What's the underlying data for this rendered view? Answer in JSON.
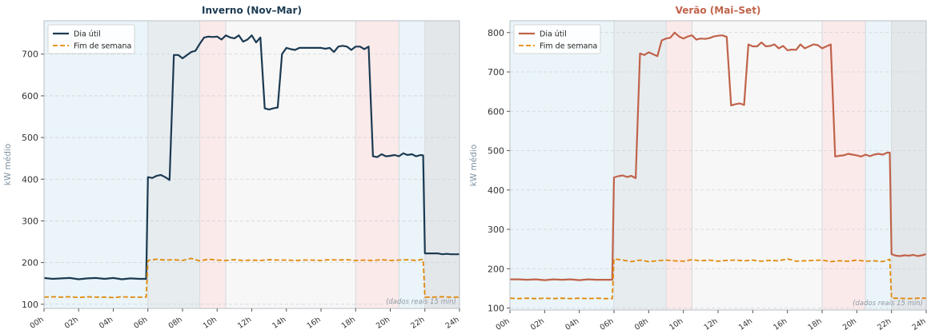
{
  "chart_data": [
    {
      "type": "line",
      "title": "Inverno (Nov–Mar)",
      "title_color": "#1b3a52",
      "ylabel": "kW médio",
      "xlabel": "",
      "xlim": [
        0,
        24
      ],
      "ylim": [
        90,
        780
      ],
      "yticks": [
        100,
        200,
        300,
        400,
        500,
        600,
        700
      ],
      "xticks": [
        0,
        2,
        4,
        6,
        8,
        10,
        12,
        14,
        16,
        18,
        20,
        22,
        24
      ],
      "xtick_labels": [
        "00h",
        "02h",
        "04h",
        "06h",
        "08h",
        "10h",
        "12h",
        "14h",
        "16h",
        "18h",
        "20h",
        "22h",
        "24h"
      ],
      "grid": "horizontal dashed",
      "legend": "top-left",
      "annotation": "(dados reais 15 min)",
      "bands": [
        {
          "from": 0,
          "to": 6,
          "color": "#eaf4f9"
        },
        {
          "from": 6,
          "to": 9,
          "color": "#e7ecef"
        },
        {
          "from": 9,
          "to": 10.5,
          "color": "#fbeaea"
        },
        {
          "from": 10.5,
          "to": 18,
          "color": "#f7f7f7"
        },
        {
          "from": 18,
          "to": 20.5,
          "color": "#fbeaea"
        },
        {
          "from": 20.5,
          "to": 22,
          "color": "#eaf4f9"
        },
        {
          "from": 22,
          "to": 24,
          "color": "#e4e7ea"
        }
      ],
      "band_edges": [
        6,
        9,
        10.5,
        18,
        20.5,
        22
      ],
      "series": [
        {
          "name": "Dia útil",
          "color": "#1b3a52",
          "style": "solid",
          "x": [
            0,
            0.5,
            1,
            1.5,
            2,
            2.5,
            3,
            3.5,
            4,
            4.5,
            5,
            5.5,
            5.9,
            6.0,
            6.25,
            6.5,
            6.75,
            7.0,
            7.25,
            7.5,
            7.75,
            8.0,
            8.5,
            8.75,
            9.0,
            9.25,
            9.5,
            9.75,
            10.0,
            10.25,
            10.5,
            10.75,
            11.0,
            11.25,
            11.5,
            11.75,
            12.0,
            12.25,
            12.5,
            12.75,
            13.0,
            13.25,
            13.5,
            13.75,
            14.0,
            14.25,
            14.5,
            14.75,
            15.0,
            15.5,
            16.0,
            16.25,
            16.5,
            16.75,
            17.0,
            17.25,
            17.5,
            17.75,
            18.0,
            18.25,
            18.5,
            18.75,
            19.0,
            19.25,
            19.5,
            19.75,
            20.0,
            20.25,
            20.5,
            20.75,
            21.0,
            21.25,
            21.5,
            21.75,
            21.9,
            22.0,
            22.25,
            22.5,
            22.75,
            23.0,
            23.25,
            23.5,
            23.75,
            24.0
          ],
          "values": [
            163,
            161,
            162,
            163,
            160,
            162,
            163,
            161,
            163,
            160,
            162,
            161,
            161,
            405,
            403,
            408,
            410,
            405,
            398,
            698,
            698,
            690,
            705,
            708,
            725,
            740,
            742,
            741,
            742,
            735,
            745,
            740,
            738,
            745,
            730,
            735,
            745,
            728,
            740,
            570,
            567,
            570,
            572,
            700,
            715,
            712,
            710,
            715,
            715,
            715,
            715,
            713,
            715,
            705,
            718,
            720,
            718,
            710,
            718,
            718,
            712,
            718,
            455,
            453,
            460,
            455,
            456,
            458,
            455,
            462,
            458,
            460,
            455,
            458,
            457,
            222,
            222,
            222,
            222,
            220,
            221,
            220,
            220,
            220
          ]
        },
        {
          "name": "Fim de semana",
          "color": "#e08a0b",
          "style": "dashed",
          "x": [
            0,
            0.5,
            1,
            1.5,
            2,
            2.5,
            3,
            3.5,
            4,
            4.5,
            5,
            5.5,
            5.9,
            6.0,
            6.5,
            7.0,
            7.5,
            8.0,
            8.5,
            9.0,
            9.5,
            10.0,
            10.5,
            11.0,
            11.5,
            12.0,
            12.5,
            13.0,
            13.5,
            14.0,
            14.5,
            15.0,
            15.5,
            16.0,
            16.5,
            17.0,
            17.5,
            18.0,
            18.5,
            19.0,
            19.5,
            20.0,
            20.5,
            21.0,
            21.5,
            21.9,
            22.0,
            22.5,
            23.0,
            23.5,
            24.0
          ],
          "values": [
            117,
            118,
            117,
            118,
            116,
            118,
            117,
            117,
            116,
            118,
            117,
            117,
            117,
            205,
            208,
            206,
            207,
            205,
            210,
            204,
            208,
            206,
            205,
            207,
            205,
            206,
            205,
            207,
            206,
            206,
            205,
            206,
            206,
            205,
            207,
            206,
            207,
            205,
            206,
            205,
            207,
            205,
            206,
            207,
            205,
            208,
            117,
            117,
            118,
            117,
            117
          ]
        }
      ]
    },
    {
      "type": "line",
      "title": "Verão (Mai–Set)",
      "title_color": "#c0634a",
      "ylabel": "kW médio",
      "xlabel": "",
      "xlim": [
        0,
        24
      ],
      "ylim": [
        95,
        830
      ],
      "yticks": [
        100,
        200,
        300,
        400,
        500,
        600,
        700,
        800
      ],
      "xticks": [
        0,
        2,
        4,
        6,
        8,
        10,
        12,
        14,
        16,
        18,
        20,
        22,
        24
      ],
      "xtick_labels": [
        "00h",
        "02h",
        "04h",
        "06h",
        "08h",
        "10h",
        "12h",
        "14h",
        "16h",
        "18h",
        "20h",
        "22h",
        "24h"
      ],
      "grid": "horizontal dashed",
      "legend": "top-left",
      "annotation": "(dados reais 15 min)",
      "bands": [
        {
          "from": 0,
          "to": 6,
          "color": "#eaf4f9"
        },
        {
          "from": 6,
          "to": 9,
          "color": "#e7ecef"
        },
        {
          "from": 9,
          "to": 10.5,
          "color": "#fbeaea"
        },
        {
          "from": 10.5,
          "to": 18,
          "color": "#f7f7f7"
        },
        {
          "from": 18,
          "to": 20.5,
          "color": "#fbeaea"
        },
        {
          "from": 20.5,
          "to": 22,
          "color": "#eaf4f9"
        },
        {
          "from": 22,
          "to": 24,
          "color": "#e4e7ea"
        }
      ],
      "band_edges": [
        6,
        9,
        10.5,
        18,
        20.5,
        22
      ],
      "series": [
        {
          "name": "Dia útil",
          "color": "#c0634a",
          "style": "solid",
          "x": [
            0,
            0.5,
            1,
            1.5,
            2,
            2.5,
            3,
            3.5,
            4,
            4.5,
            5,
            5.5,
            5.9,
            6.0,
            6.25,
            6.5,
            6.75,
            7.0,
            7.25,
            7.5,
            7.75,
            8.0,
            8.25,
            8.5,
            8.75,
            9.0,
            9.25,
            9.5,
            9.75,
            10.0,
            10.25,
            10.5,
            10.75,
            11.0,
            11.25,
            11.5,
            11.75,
            12.0,
            12.25,
            12.5,
            12.75,
            13.0,
            13.25,
            13.5,
            13.75,
            14.0,
            14.25,
            14.5,
            14.75,
            15.0,
            15.25,
            15.5,
            15.75,
            16.0,
            16.25,
            16.5,
            16.75,
            17.0,
            17.25,
            17.5,
            17.75,
            18.0,
            18.25,
            18.5,
            18.75,
            19.0,
            19.25,
            19.5,
            19.75,
            20.0,
            20.25,
            20.5,
            20.75,
            21.0,
            21.25,
            21.5,
            21.75,
            21.9,
            22.0,
            22.25,
            22.5,
            22.75,
            23.0,
            23.25,
            23.5,
            23.75,
            24.0
          ],
          "values": [
            173,
            173,
            172,
            173,
            171,
            173,
            172,
            173,
            171,
            173,
            172,
            172,
            172,
            432,
            435,
            437,
            433,
            436,
            430,
            747,
            743,
            750,
            745,
            740,
            780,
            785,
            787,
            800,
            790,
            785,
            790,
            793,
            782,
            785,
            784,
            786,
            790,
            792,
            793,
            789,
            615,
            618,
            620,
            616,
            770,
            765,
            765,
            775,
            765,
            766,
            770,
            760,
            766,
            755,
            757,
            756,
            770,
            760,
            765,
            770,
            768,
            760,
            765,
            770,
            485,
            487,
            488,
            492,
            490,
            488,
            485,
            490,
            486,
            490,
            492,
            490,
            495,
            495,
            237,
            233,
            232,
            234,
            233,
            235,
            232,
            234,
            237
          ],
          "note": "values approximated from the plotted line"
        },
        {
          "name": "Fim de semana",
          "color": "#e08a0b",
          "style": "dashed",
          "x": [
            0,
            0.5,
            1,
            1.5,
            2,
            2.5,
            3,
            3.5,
            4,
            4.5,
            5,
            5.5,
            5.9,
            6.0,
            6.5,
            7.0,
            7.5,
            8.0,
            8.5,
            9.0,
            9.5,
            10.0,
            10.5,
            11.0,
            11.5,
            12.0,
            12.5,
            13.0,
            13.5,
            14.0,
            14.5,
            15.0,
            15.5,
            16.0,
            16.5,
            17.0,
            17.5,
            18.0,
            18.5,
            19.0,
            19.5,
            20.0,
            20.5,
            21.0,
            21.5,
            21.9,
            22.0,
            22.5,
            23.0,
            23.5,
            24.0
          ],
          "values": [
            125,
            124,
            125,
            124,
            125,
            124,
            125,
            124,
            125,
            124,
            125,
            124,
            124,
            225,
            222,
            218,
            222,
            218,
            220,
            222,
            220,
            219,
            223,
            220,
            222,
            219,
            221,
            222,
            220,
            222,
            219,
            221,
            220,
            225,
            219,
            220,
            221,
            222,
            218,
            220,
            219,
            222,
            219,
            220,
            218,
            224,
            125,
            125,
            124,
            125,
            125
          ]
        }
      ]
    }
  ]
}
